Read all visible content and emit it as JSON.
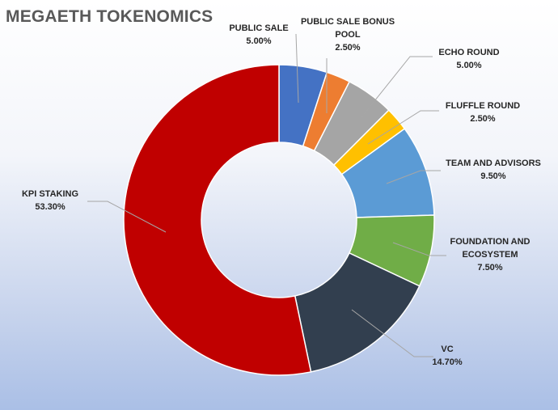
{
  "chart_data": {
    "type": "pie",
    "variant": "donut",
    "title": "MEGAETH TOKENOMICS",
    "legend": "none",
    "series": [
      {
        "values": [
          5.0,
          2.5,
          5.0,
          2.5,
          9.5,
          7.5,
          14.7,
          53.3
        ]
      }
    ],
    "categories": [
      "PUBLIC SALE",
      "PUBLIC SALE BONUS POOL",
      "ECHO ROUND",
      "FLUFFLE ROUND",
      "TEAM AND ADVISORS",
      "FOUNDATION AND ECOSYSTEM",
      "VC",
      "KPI STAKING"
    ],
    "slices": [
      {
        "label": "PUBLIC SALE",
        "label_lines": [
          "PUBLIC SALE"
        ],
        "value": 5.0,
        "value_text": "5.00%",
        "color": "#4472C4"
      },
      {
        "label": "PUBLIC SALE BONUS POOL",
        "label_lines": [
          "PUBLIC SALE BONUS",
          "POOL"
        ],
        "value": 2.5,
        "value_text": "2.50%",
        "color": "#ED7D31"
      },
      {
        "label": "ECHO ROUND",
        "label_lines": [
          "ECHO ROUND"
        ],
        "value": 5.0,
        "value_text": "5.00%",
        "color": "#A5A5A5"
      },
      {
        "label": "FLUFFLE ROUND",
        "label_lines": [
          "FLUFFLE ROUND"
        ],
        "value": 2.5,
        "value_text": "2.50%",
        "color": "#FFC000"
      },
      {
        "label": "TEAM AND ADVISORS",
        "label_lines": [
          "TEAM AND ADVISORS"
        ],
        "value": 9.5,
        "value_text": "9.50%",
        "color": "#5B9BD5"
      },
      {
        "label": "FOUNDATION AND ECOSYSTEM",
        "label_lines": [
          "FOUNDATION AND",
          "ECOSYSTEM"
        ],
        "value": 7.5,
        "value_text": "7.50%",
        "color": "#70AD47"
      },
      {
        "label": "VC",
        "label_lines": [
          "VC"
        ],
        "value": 14.7,
        "value_text": "14.70%",
        "color": "#323F4F"
      },
      {
        "label": "KPI STAKING",
        "label_lines": [
          "KPI STAKING"
        ],
        "value": 53.3,
        "value_text": "53.30%",
        "color": "#C00000"
      }
    ]
  }
}
